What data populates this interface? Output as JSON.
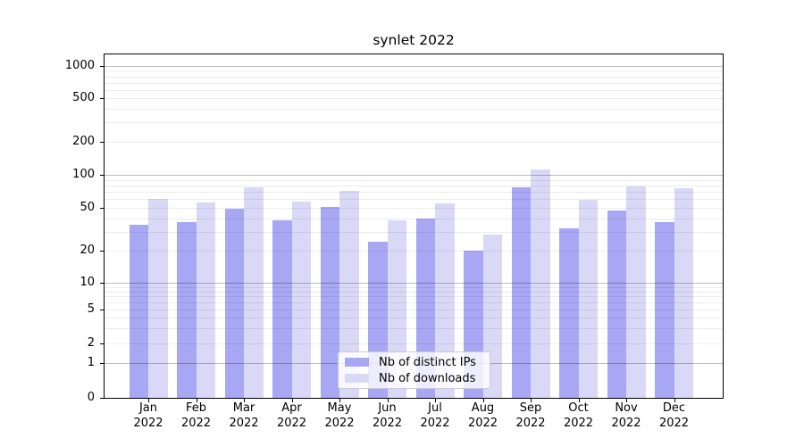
{
  "chart_data": {
    "type": "bar",
    "title": "synlet 2022",
    "categories": [
      "Jan",
      "Feb",
      "Mar",
      "Apr",
      "May",
      "Jun",
      "Jul",
      "Aug",
      "Sep",
      "Oct",
      "Nov",
      "Dec"
    ],
    "x_year_label": "2022",
    "series": [
      {
        "name": "Nb of distinct IPs",
        "color": "#a7a7f3",
        "values": [
          35,
          37,
          49,
          38,
          51,
          24,
          40,
          20,
          77,
          32,
          47,
          37
        ]
      },
      {
        "name": "Nb of downloads",
        "color": "#d9d9f7",
        "values": [
          60,
          56,
          77,
          57,
          72,
          38,
          55,
          28,
          112,
          59,
          78,
          75
        ]
      }
    ],
    "yscale": "symlog",
    "y_ticks": [
      0,
      1,
      2,
      5,
      10,
      20,
      50,
      100,
      200,
      500,
      1000
    ],
    "ylim": [
      0,
      1300
    ],
    "grid": "both",
    "grid_major_at": [
      1,
      10,
      100,
      1000
    ],
    "legend": {
      "position": "lower center",
      "labels": [
        "Nb of distinct IPs",
        "Nb of downloads"
      ]
    },
    "colors": {
      "bar_distinct_ips": "#a7a7f3",
      "bar_downloads": "#d9d9f7",
      "grid_major": "#bdbdbd",
      "grid_minor": "#ebebeb",
      "spine": "#000000",
      "background": "#ffffff"
    }
  }
}
